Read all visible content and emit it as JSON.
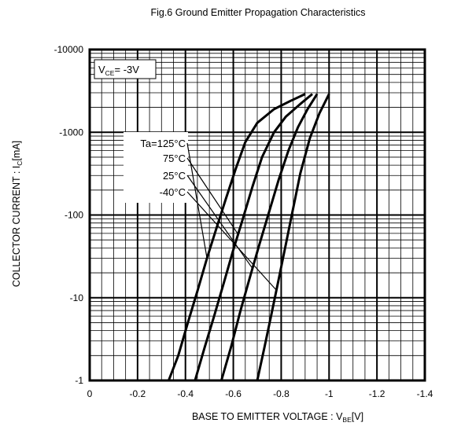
{
  "chart_data": {
    "type": "line",
    "title": "Fig.6 Ground Emitter Propagation Characteristics",
    "xlabel": {
      "main": "BASE TO EMITTER VOLTAGE : V",
      "sub": "BE",
      "unit": "[V]"
    },
    "ylabel": {
      "main": "COLLECTOR CURRENT : I",
      "sub": "C",
      "unit": "[mA]"
    },
    "xlim": [
      0,
      -1.4
    ],
    "ylim": [
      -1,
      -10000
    ],
    "yscale": "log",
    "grid": true,
    "x_ticks": [
      "0",
      "-0.2",
      "-0.4",
      "-0.6",
      "-0.8",
      "-1",
      "-1.2",
      "-1.4"
    ],
    "y_ticks": [
      "-1",
      "-10",
      "-100",
      "-1000",
      "-10000"
    ],
    "condition": {
      "main": "V",
      "sub": "CE",
      "rest": "= -3V"
    },
    "series": [
      {
        "name": "Ta=125°C",
        "x": [
          -0.33,
          -0.37,
          -0.41,
          -0.45,
          -0.49,
          -0.53,
          -0.57,
          -0.61,
          -0.65,
          -0.7,
          -0.77,
          -0.84,
          -0.9
        ],
        "y": [
          -1,
          -2,
          -5,
          -12,
          -30,
          -70,
          -160,
          -360,
          -760,
          -1300,
          -1900,
          -2400,
          -2900
        ]
      },
      {
        "name": "75°C",
        "x": [
          -0.44,
          -0.48,
          -0.52,
          -0.56,
          -0.6,
          -0.64,
          -0.68,
          -0.72,
          -0.77,
          -0.82,
          -0.88,
          -0.93
        ],
        "y": [
          -1,
          -2.5,
          -6,
          -15,
          -38,
          -90,
          -220,
          -500,
          -1000,
          -1550,
          -2200,
          -2900
        ]
      },
      {
        "name": "25°C",
        "x": [
          -0.55,
          -0.59,
          -0.63,
          -0.67,
          -0.71,
          -0.75,
          -0.79,
          -0.83,
          -0.87,
          -0.91,
          -0.95
        ],
        "y": [
          -1,
          -2.5,
          -7,
          -18,
          -45,
          -110,
          -270,
          -600,
          -1150,
          -1900,
          -2900
        ]
      },
      {
        "name": "-40°C",
        "x": [
          -0.7,
          -0.73,
          -0.76,
          -0.79,
          -0.82,
          -0.85,
          -0.88,
          -0.92,
          -0.96,
          -1.0
        ],
        "y": [
          -1,
          -2.5,
          -6.5,
          -17,
          -45,
          -120,
          -320,
          -850,
          -1700,
          -2900
        ]
      }
    ],
    "legend_pointers": [
      -0.49,
      -0.62,
      -0.68,
      -0.78
    ]
  }
}
